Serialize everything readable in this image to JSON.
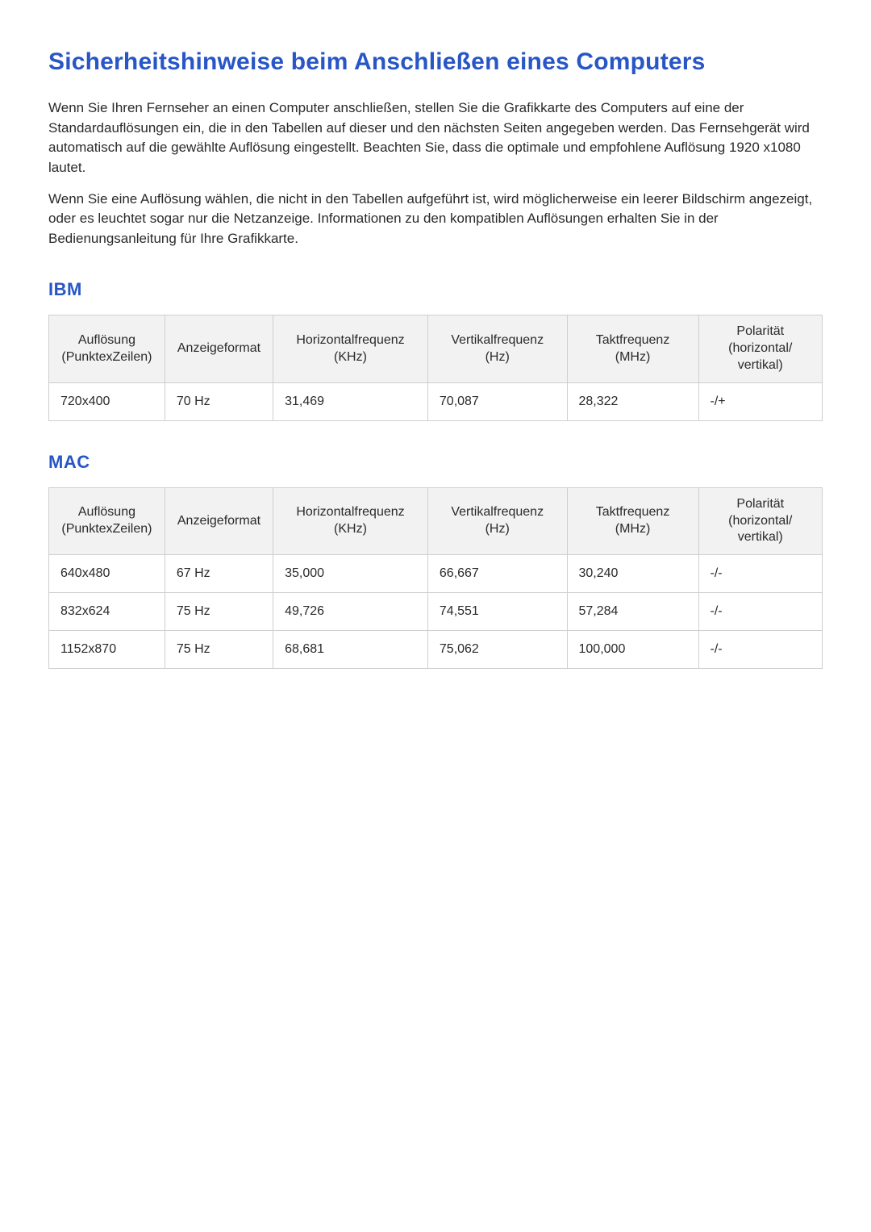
{
  "title": "Sicherheitshinweise beim Anschließen eines Computers",
  "paragraphs": [
    "Wenn Sie Ihren Fernseher an einen Computer anschließen, stellen Sie die Grafikkarte des Computers auf eine der Standardauflösungen ein, die in den Tabellen auf dieser und den nächsten Seiten angegeben werden. Das Fernsehgerät wird automatisch auf die gewählte Auflösung eingestellt. Beachten Sie, dass die optimale und empfohlene Auflösung 1920 x1080 lautet.",
    "Wenn Sie eine Auflösung wählen, die nicht in den Tabellen aufgeführt ist, wird möglicherweise ein leerer Bildschirm angezeigt, oder es leuchtet sogar nur die Netzanzeige. Informationen zu den kompatiblen Auflösungen erhalten Sie in der Bedienungsanleitung für Ihre Grafikkarte."
  ],
  "columns": [
    "Auflösung (PunktexZeilen)",
    "Anzeigeformat",
    "Horizontalfrequenz (KHz)",
    "Vertikalfrequenz (Hz)",
    "Taktfrequenz (MHz)",
    "Polarität (horizontal/ vertikal)"
  ],
  "sections": [
    {
      "heading": "IBM",
      "rows": [
        [
          "720x400",
          "70 Hz",
          "31,469",
          "70,087",
          "28,322",
          "-/+"
        ]
      ]
    },
    {
      "heading": "MAC",
      "rows": [
        [
          "640x480",
          "67 Hz",
          "35,000",
          "66,667",
          "30,240",
          "-/-"
        ],
        [
          "832x624",
          "75 Hz",
          "49,726",
          "74,551",
          "57,284",
          "-/-"
        ],
        [
          "1152x870",
          "75 Hz",
          "68,681",
          "75,062",
          "100,000",
          "-/-"
        ]
      ]
    }
  ],
  "style": {
    "heading_color": "#2856c6",
    "text_color": "#2a2a2a",
    "header_bg": "#f2f2f2",
    "border_color": "#cfcfcf",
    "background": "#ffffff",
    "h1_fontsize": 30,
    "h2_fontsize": 22,
    "body_fontsize": 17,
    "table_fontsize": 16
  }
}
